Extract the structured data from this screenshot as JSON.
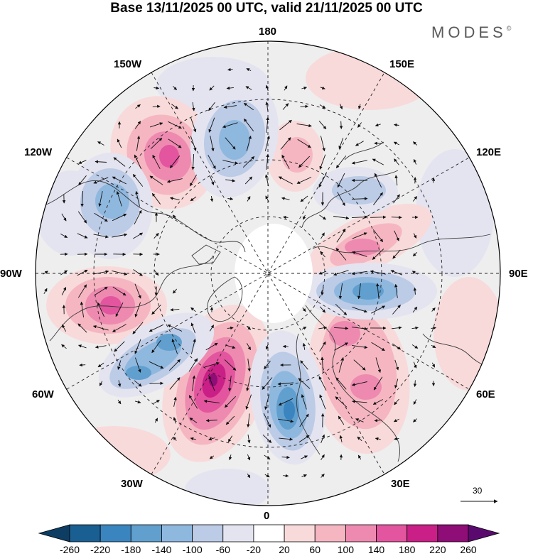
{
  "title": "Base 13/11/2025 00 UTC, valid 21/11/2025 00 UTC",
  "brand": "MODES",
  "brand_mark": "©",
  "longitude_labels": {
    "top": "180",
    "top_right": "150E",
    "right_upper": "120E",
    "right": "90E",
    "right_lower": "60E",
    "bottom_right": "30E",
    "bottom": "0",
    "bottom_left": "30W",
    "left_lower": "60W",
    "left": "90W",
    "left_upper": "120W",
    "top_left": "150W"
  },
  "reference_vector": {
    "label": "30"
  },
  "colorbar": {
    "tick_labels": [
      "-260",
      "-220",
      "-180",
      "-140",
      "-100",
      "-60",
      "-20",
      "20",
      "60",
      "100",
      "140",
      "180",
      "220",
      "260"
    ],
    "colors": [
      "#0d3d63",
      "#1a5f92",
      "#3a84bf",
      "#619fcf",
      "#8fb8df",
      "#bccbe6",
      "#e4e4f0",
      "#ffffff",
      "#f8dada",
      "#f5b6c2",
      "#ee8ab0",
      "#e3559e",
      "#c91f86",
      "#8e0d76",
      "#5a0a6e"
    ]
  },
  "colors": {
    "dashes": "#222222",
    "coast": "#3a3a3a",
    "fill_gray": "#eeeeee"
  }
}
